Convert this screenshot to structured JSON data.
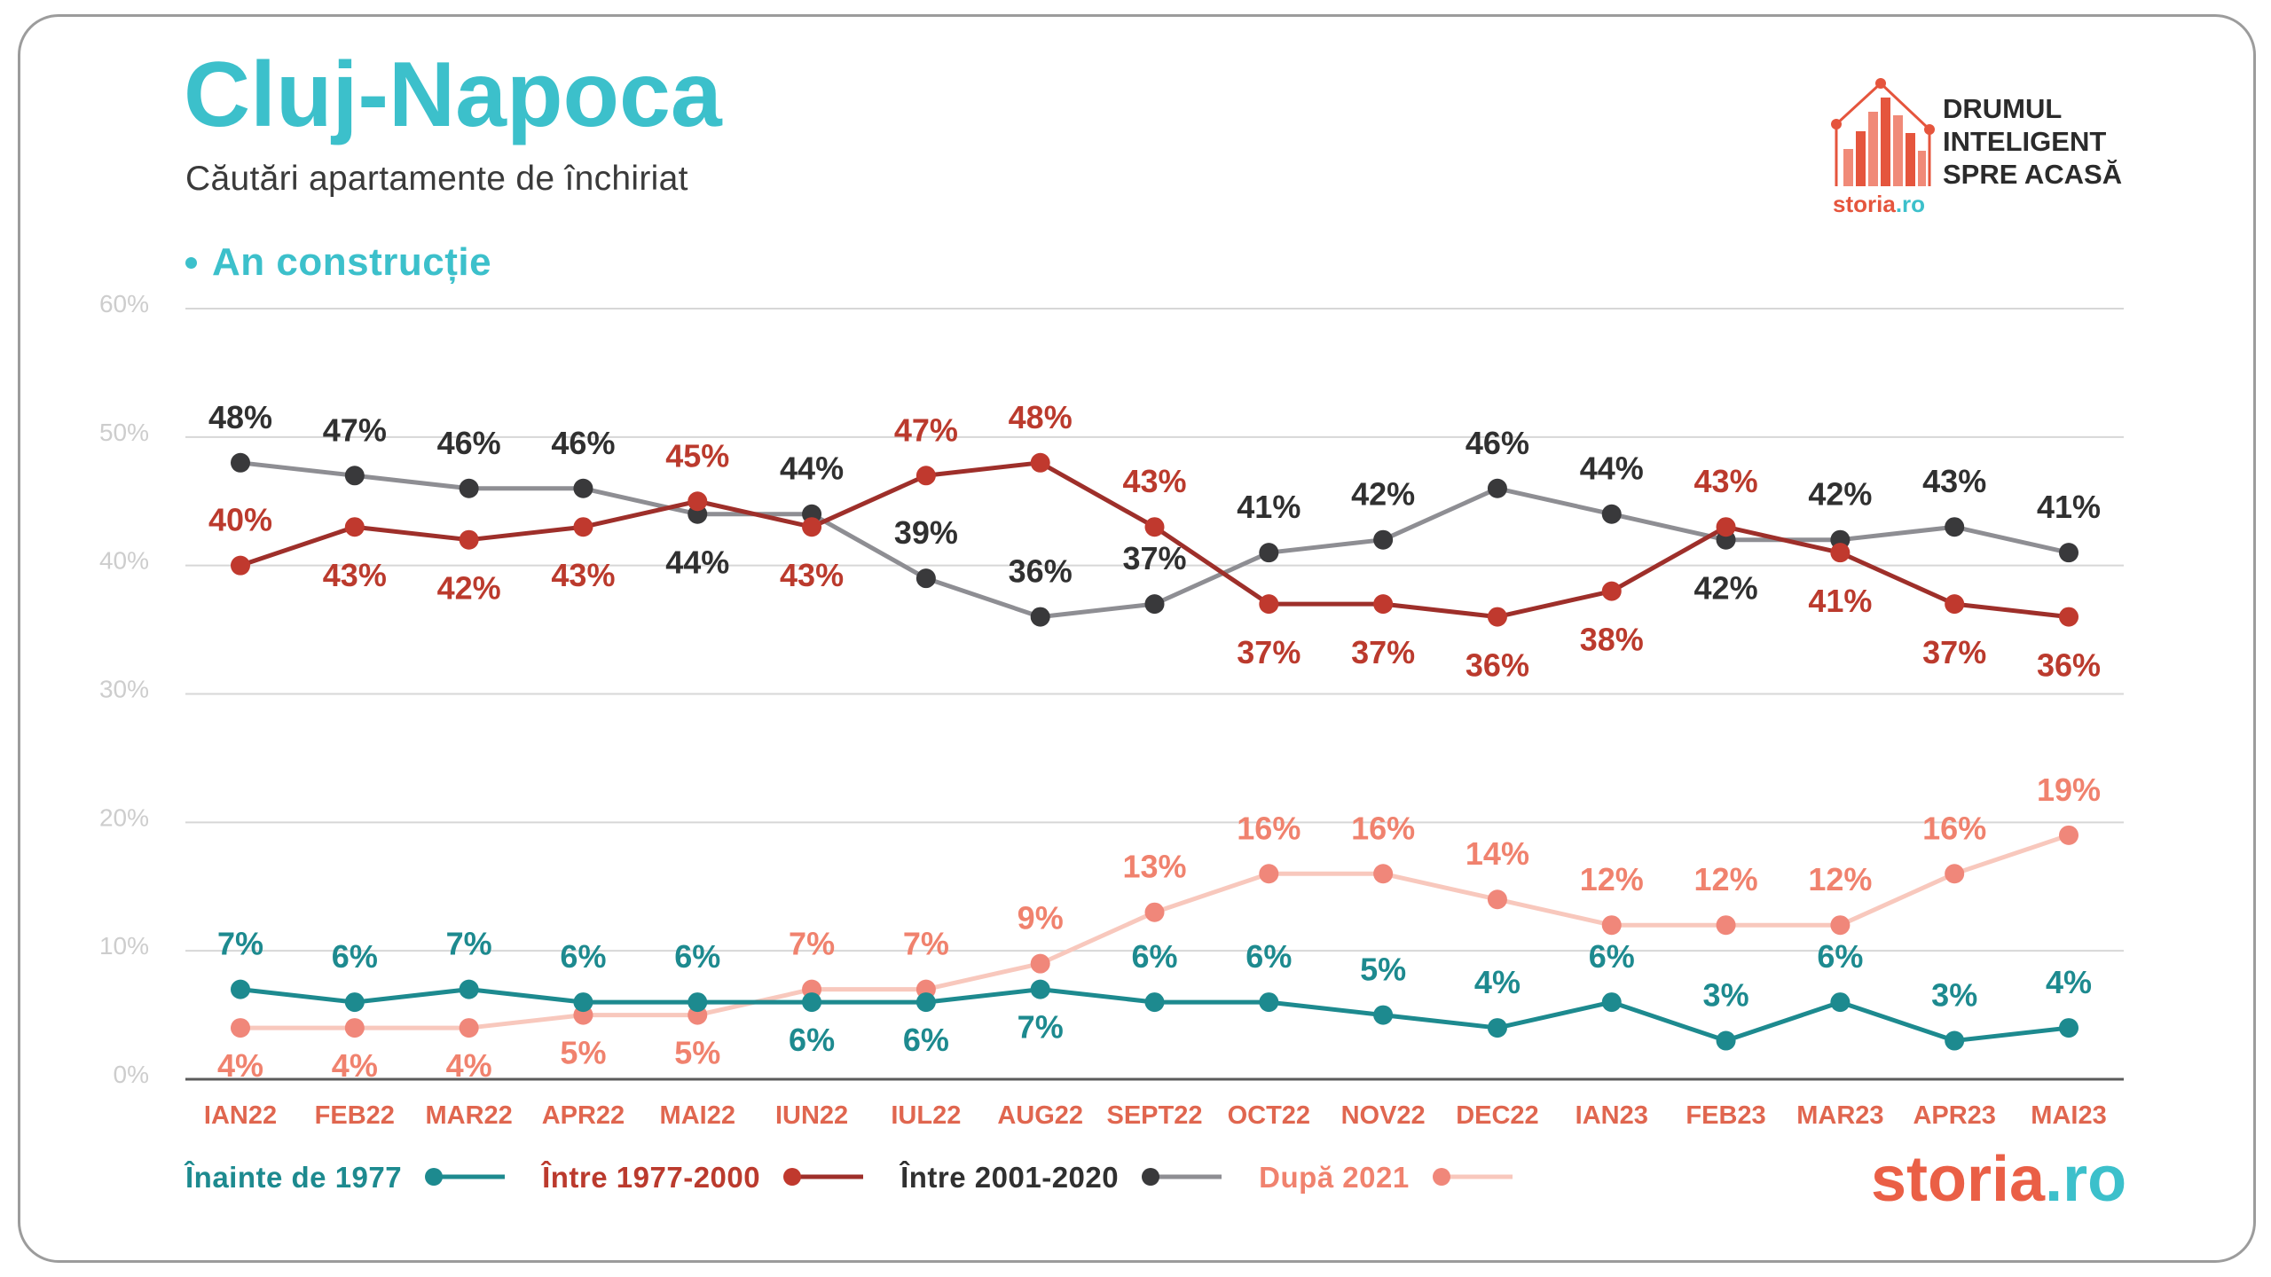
{
  "header": {
    "title": "Cluj-Napoca",
    "subtitle": "Căutări apartamente de închiriat",
    "section_label": "An construcție"
  },
  "logo": {
    "icon": "house-bar-chart-icon",
    "tagline_lines": [
      "DRUMUL",
      "INTELIGENT",
      "SPRE ACASĂ"
    ],
    "brand": "storia",
    "brand_suffix": ".ro"
  },
  "footer_logo": {
    "brand": "storia",
    "brand_suffix": ".ro"
  },
  "theme": {
    "accent_teal": "#3cc0cb",
    "subtitle_text": "#3a3a3a",
    "tagline_text": "#2b2b2b",
    "brand_red": "#e5553d",
    "footer_brand_red": "#ea5f46",
    "x_tick_color": "#e0664f",
    "y_tick_color": "#cdcdcd",
    "gridline_color": "#d7d7d7",
    "axis_color": "#5b5b5b"
  },
  "chart_data": {
    "type": "line",
    "categories": [
      "IAN22",
      "FEB22",
      "MAR22",
      "APR22",
      "MAI22",
      "IUN22",
      "IUL22",
      "AUG22",
      "SEPT22",
      "OCT22",
      "NOV22",
      "DEC22",
      "IAN23",
      "FEB23",
      "MAR23",
      "APR23",
      "MAI23"
    ],
    "y_unit": "%",
    "ylim": [
      0,
      60
    ],
    "yticks": [
      0,
      10,
      20,
      30,
      40,
      50,
      60
    ],
    "grid": true,
    "legend_position": "bottom",
    "series": [
      {
        "name": "Înainte de 1977",
        "values": [
          7,
          6,
          7,
          6,
          6,
          6,
          6,
          7,
          6,
          6,
          5,
          4,
          6,
          3,
          6,
          3,
          4
        ],
        "line_color": "#1d8a8f",
        "marker_color": "#1d8a8f",
        "label_color": "#1d8a8f"
      },
      {
        "name": "Între 1977-2000",
        "values": [
          40,
          43,
          42,
          43,
          45,
          43,
          47,
          48,
          43,
          37,
          37,
          36,
          38,
          43,
          41,
          37,
          36
        ],
        "line_color": "#9e2f2a",
        "marker_color": "#c0392e",
        "label_color": "#bb3a2d"
      },
      {
        "name": "Între 2001-2020",
        "values": [
          48,
          47,
          46,
          46,
          44,
          44,
          39,
          36,
          37,
          41,
          42,
          46,
          44,
          42,
          42,
          43,
          41
        ],
        "line_color": "#8e8e93",
        "marker_color": "#39393b",
        "label_color": "#303030"
      },
      {
        "name": "După 2021",
        "values": [
          4,
          4,
          4,
          5,
          5,
          7,
          7,
          9,
          13,
          16,
          16,
          14,
          12,
          12,
          12,
          16,
          19
        ],
        "line_color": "#f8c8bd",
        "marker_color": "#f0877a",
        "label_color": "#f0826e"
      }
    ]
  }
}
